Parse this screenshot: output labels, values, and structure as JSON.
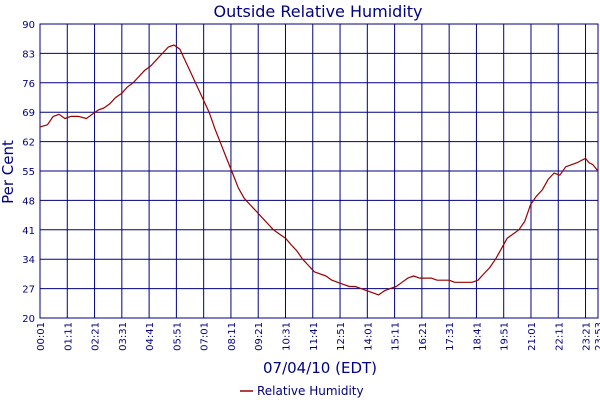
{
  "chart_data": {
    "type": "line",
    "title": "Outside Relative Humidity",
    "xlabel": "07/04/10 (EDT)",
    "ylabel": "Per Cent",
    "ylim": [
      20,
      90
    ],
    "yticks": [
      "20",
      "27",
      "34",
      "41",
      "48",
      "55",
      "62",
      "69",
      "76",
      "83",
      "90"
    ],
    "xlim": [
      "00:01",
      "23:53"
    ],
    "xticks": [
      "00:01",
      "01:11",
      "02:21",
      "03:31",
      "04:41",
      "05:51",
      "07:01",
      "08:11",
      "09:21",
      "10:31",
      "11:41",
      "12:51",
      "14:01",
      "15:11",
      "16:21",
      "17:31",
      "18:41",
      "19:51",
      "21:01",
      "22:11",
      "23:21",
      "23:53"
    ],
    "grid": true,
    "legend_position": "bottom-center",
    "colors": {
      "series": "#990000",
      "grid": "#000080",
      "text": "#000080"
    },
    "series": [
      {
        "name": "Relative Humidity",
        "x": [
          "00:01",
          "00:20",
          "00:35",
          "00:50",
          "01:05",
          "01:20",
          "01:40",
          "02:00",
          "02:15",
          "02:30",
          "02:45",
          "03:00",
          "03:15",
          "03:31",
          "03:45",
          "04:00",
          "04:15",
          "04:30",
          "04:45",
          "05:00",
          "05:15",
          "05:30",
          "05:45",
          "06:00",
          "06:15",
          "06:30",
          "06:45",
          "07:00",
          "07:15",
          "07:30",
          "07:45",
          "08:00",
          "08:15",
          "08:30",
          "08:45",
          "09:00",
          "09:15",
          "09:30",
          "09:45",
          "10:00",
          "10:15",
          "10:31",
          "10:45",
          "11:00",
          "11:15",
          "11:30",
          "11:45",
          "12:00",
          "12:15",
          "12:30",
          "12:45",
          "13:00",
          "13:15",
          "13:30",
          "13:45",
          "14:00",
          "14:15",
          "14:30",
          "14:45",
          "15:00",
          "15:15",
          "15:30",
          "15:45",
          "16:00",
          "16:15",
          "16:30",
          "16:45",
          "17:00",
          "17:15",
          "17:31",
          "17:45",
          "18:00",
          "18:15",
          "18:30",
          "18:45",
          "19:00",
          "19:15",
          "19:30",
          "19:45",
          "20:00",
          "20:15",
          "20:30",
          "20:45",
          "21:00",
          "21:15",
          "21:30",
          "21:45",
          "22:00",
          "22:15",
          "22:30",
          "22:45",
          "23:00",
          "23:10",
          "23:21",
          "23:30",
          "23:40",
          "23:53"
        ],
        "values": [
          65.5,
          66,
          68,
          68.5,
          67.5,
          68,
          68,
          67.5,
          68.5,
          69.5,
          70,
          71,
          72.5,
          73.5,
          75,
          76,
          77.5,
          79,
          80,
          81.5,
          83,
          84.5,
          85,
          84,
          81,
          78,
          75,
          72,
          69,
          65,
          61.5,
          58,
          54.5,
          51,
          48.5,
          47,
          45.5,
          44,
          42.5,
          41,
          40,
          39,
          37.5,
          36,
          34,
          32.5,
          31,
          30.5,
          30,
          29,
          28.5,
          28,
          27.5,
          27.5,
          27,
          26.5,
          26,
          25.5,
          26.5,
          27,
          27.5,
          28.5,
          29.5,
          30,
          29.5,
          29.5,
          29.5,
          29,
          29,
          29,
          28.5,
          28.5,
          28.5,
          28.5,
          29,
          30.5,
          32,
          34,
          36.5,
          39,
          40,
          41,
          43,
          47,
          49,
          50.5,
          53,
          54.5,
          54,
          56,
          56.5,
          57,
          57.5,
          58,
          57,
          56.5,
          55
        ]
      }
    ]
  }
}
